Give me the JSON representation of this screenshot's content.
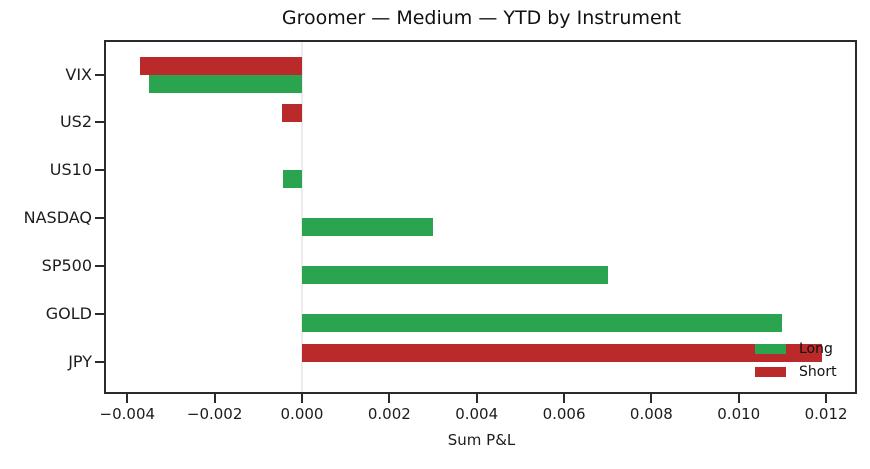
{
  "chart_data": {
    "type": "bar",
    "orientation": "horizontal",
    "title": "Groomer — Medium — YTD by Instrument",
    "xlabel": "Sum P&L",
    "categories": [
      "VIX",
      "US2",
      "US10",
      "NASDAQ",
      "SP500",
      "GOLD",
      "JPY"
    ],
    "series": [
      {
        "name": "Long",
        "color": "#2aa44e",
        "values": [
          -0.0035,
          null,
          -0.00044,
          0.003,
          0.007,
          0.011,
          null
        ]
      },
      {
        "name": "Short",
        "color": "#bb2a2b",
        "values": [
          -0.0037,
          -0.00046,
          null,
          null,
          null,
          null,
          0.0119
        ]
      }
    ],
    "xticks": [
      {
        "value": -0.004,
        "label": "−0.004"
      },
      {
        "value": -0.002,
        "label": "−0.002"
      },
      {
        "value": 0.0,
        "label": "0.000"
      },
      {
        "value": 0.002,
        "label": "0.002"
      },
      {
        "value": 0.004,
        "label": "0.004"
      },
      {
        "value": 0.006,
        "label": "0.006"
      },
      {
        "value": 0.008,
        "label": "0.008"
      },
      {
        "value": 0.01,
        "label": "0.010"
      },
      {
        "value": 0.012,
        "label": "0.012"
      }
    ],
    "xlim": [
      -0.0045,
      0.0127
    ],
    "grid": false,
    "zero_line_color": "#ececec",
    "axis_color": "#2a2a2a",
    "legend_position": "lower right"
  }
}
